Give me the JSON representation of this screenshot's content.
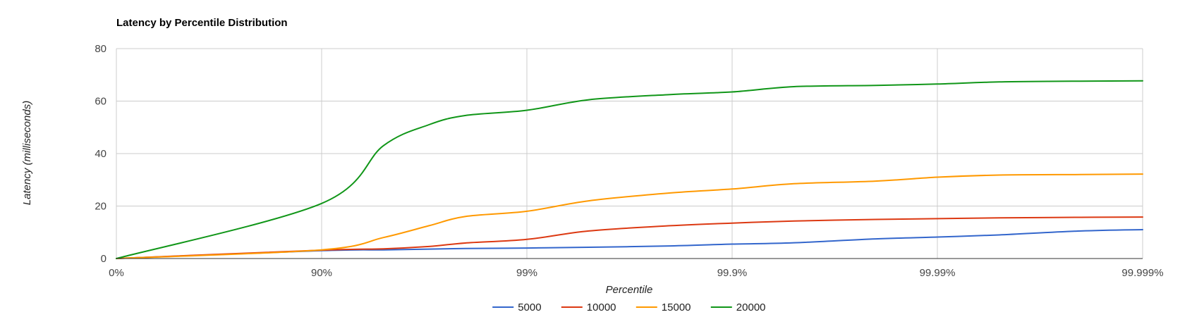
{
  "chart_data": {
    "type": "line",
    "title": "Latency by Percentile Distribution",
    "xlabel": "Percentile",
    "ylabel": "Latency (milliseconds)",
    "x_scale": "log of 1/(1 - percentile)",
    "x_ticks": [
      "0%",
      "90%",
      "99%",
      "99.9%",
      "99.99%",
      "99.999%"
    ],
    "ylim": [
      0,
      80
    ],
    "y_ticks": [
      "0",
      "20",
      "40",
      "60",
      "80"
    ],
    "grid": true,
    "legend_position": "bottom",
    "x": [
      0,
      0.9,
      0.95,
      0.97,
      0.98,
      0.99,
      0.995,
      0.998,
      0.999,
      0.9995,
      0.9998,
      0.9999,
      0.99995,
      0.99998,
      0.99999
    ],
    "series": [
      {
        "name": "5000",
        "color": "#3366cc",
        "values": [
          0,
          3.0,
          3.3,
          3.6,
          3.8,
          4.0,
          4.3,
          4.8,
          5.5,
          6.0,
          7.5,
          8.2,
          9.0,
          10.5,
          11.0
        ]
      },
      {
        "name": "10000",
        "color": "#dc3912",
        "values": [
          0,
          3.2,
          3.7,
          4.6,
          5.9,
          7.3,
          10.5,
          12.5,
          13.5,
          14.3,
          14.9,
          15.2,
          15.5,
          15.7,
          15.8
        ]
      },
      {
        "name": "15000",
        "color": "#ff9900",
        "values": [
          0,
          3.3,
          8.0,
          12.5,
          16.0,
          18.0,
          22.0,
          25.0,
          26.5,
          28.5,
          29.5,
          31.0,
          31.8,
          32.0,
          32.2
        ]
      },
      {
        "name": "20000",
        "color": "#109618",
        "values": [
          0,
          21.0,
          43.0,
          51.0,
          54.5,
          56.5,
          60.5,
          62.5,
          63.5,
          65.5,
          66.0,
          66.5,
          67.3,
          67.6,
          67.7
        ]
      }
    ]
  }
}
